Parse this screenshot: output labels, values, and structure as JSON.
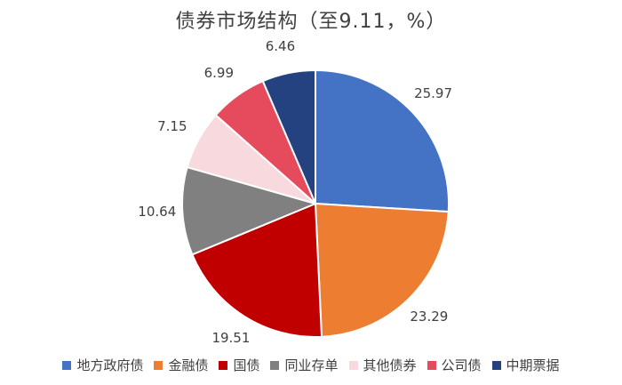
{
  "chart_data": {
    "type": "pie",
    "title": "债券市场结构（至9.11，%）",
    "categories": [
      "地方政府债",
      "金融债",
      "国债",
      "同业存单",
      "其他债券",
      "公司债",
      "中期票据"
    ],
    "values": [
      25.97,
      23.29,
      19.51,
      10.64,
      7.15,
      6.99,
      6.46
    ],
    "colors": [
      "#4472C4",
      "#ED7D31",
      "#C00000",
      "#808080",
      "#F8D9DE",
      "#E64B5D",
      "#23427F"
    ],
    "labels": [
      "25.97",
      "23.29",
      "19.51",
      "10.64",
      "7.15",
      "6.99",
      "6.46"
    ],
    "legend_position": "bottom",
    "start_angle_deg": 0,
    "direction": "clockwise"
  }
}
